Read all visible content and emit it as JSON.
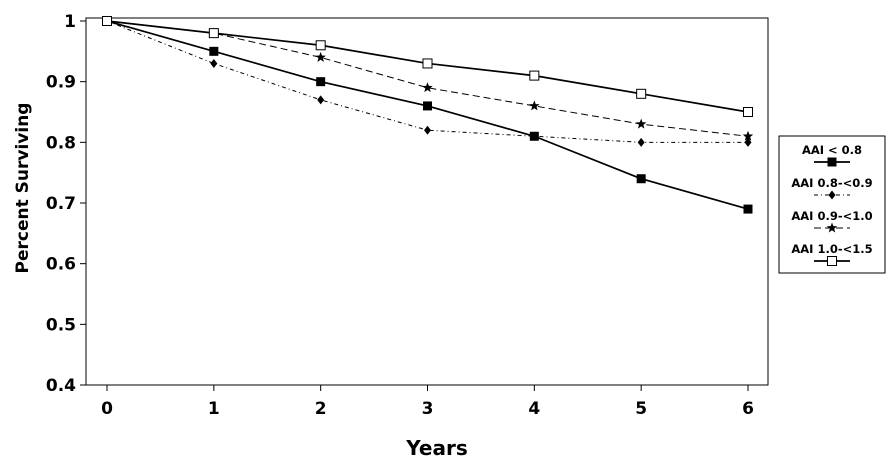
{
  "chart_data": {
    "type": "line",
    "xlabel": "Years",
    "ylabel": "Percent Surviving",
    "xlim": [
      0,
      6
    ],
    "ylim": [
      0.4,
      1
    ],
    "x": [
      0,
      1,
      2,
      3,
      4,
      5,
      6
    ],
    "x_tick_labels": [
      "0",
      "1",
      "2",
      "3",
      "4",
      "5",
      "6"
    ],
    "y_tick_labels": [
      "0.4",
      "0.5",
      "0.6",
      "0.7",
      "0.8",
      "0.9",
      "1"
    ],
    "y_ticks": [
      0.4,
      0.5,
      0.6,
      0.7,
      0.8,
      0.9,
      1
    ],
    "grid": false,
    "legend_position": "right",
    "series": [
      {
        "name": "AAI < 0.8",
        "values": [
          1.0,
          0.95,
          0.9,
          0.86,
          0.81,
          0.74,
          0.69
        ],
        "marker": "filled-square",
        "line_style": "solid",
        "color": "#000000"
      },
      {
        "name": "AAI 0.8-<0.9",
        "values": [
          1.0,
          0.93,
          0.87,
          0.82,
          0.81,
          0.8,
          0.8
        ],
        "marker": "diamond",
        "line_style": "dash-dot",
        "color": "#000000"
      },
      {
        "name": "AAI 0.9-<1.0",
        "values": [
          1.0,
          0.98,
          0.94,
          0.89,
          0.86,
          0.83,
          0.81
        ],
        "marker": "star",
        "line_style": "dashed",
        "color": "#000000"
      },
      {
        "name": "AAI 1.0-<1.5",
        "values": [
          1.0,
          0.98,
          0.96,
          0.93,
          0.91,
          0.88,
          0.85
        ],
        "marker": "open-square",
        "line_style": "solid",
        "color": "#000000"
      }
    ]
  }
}
